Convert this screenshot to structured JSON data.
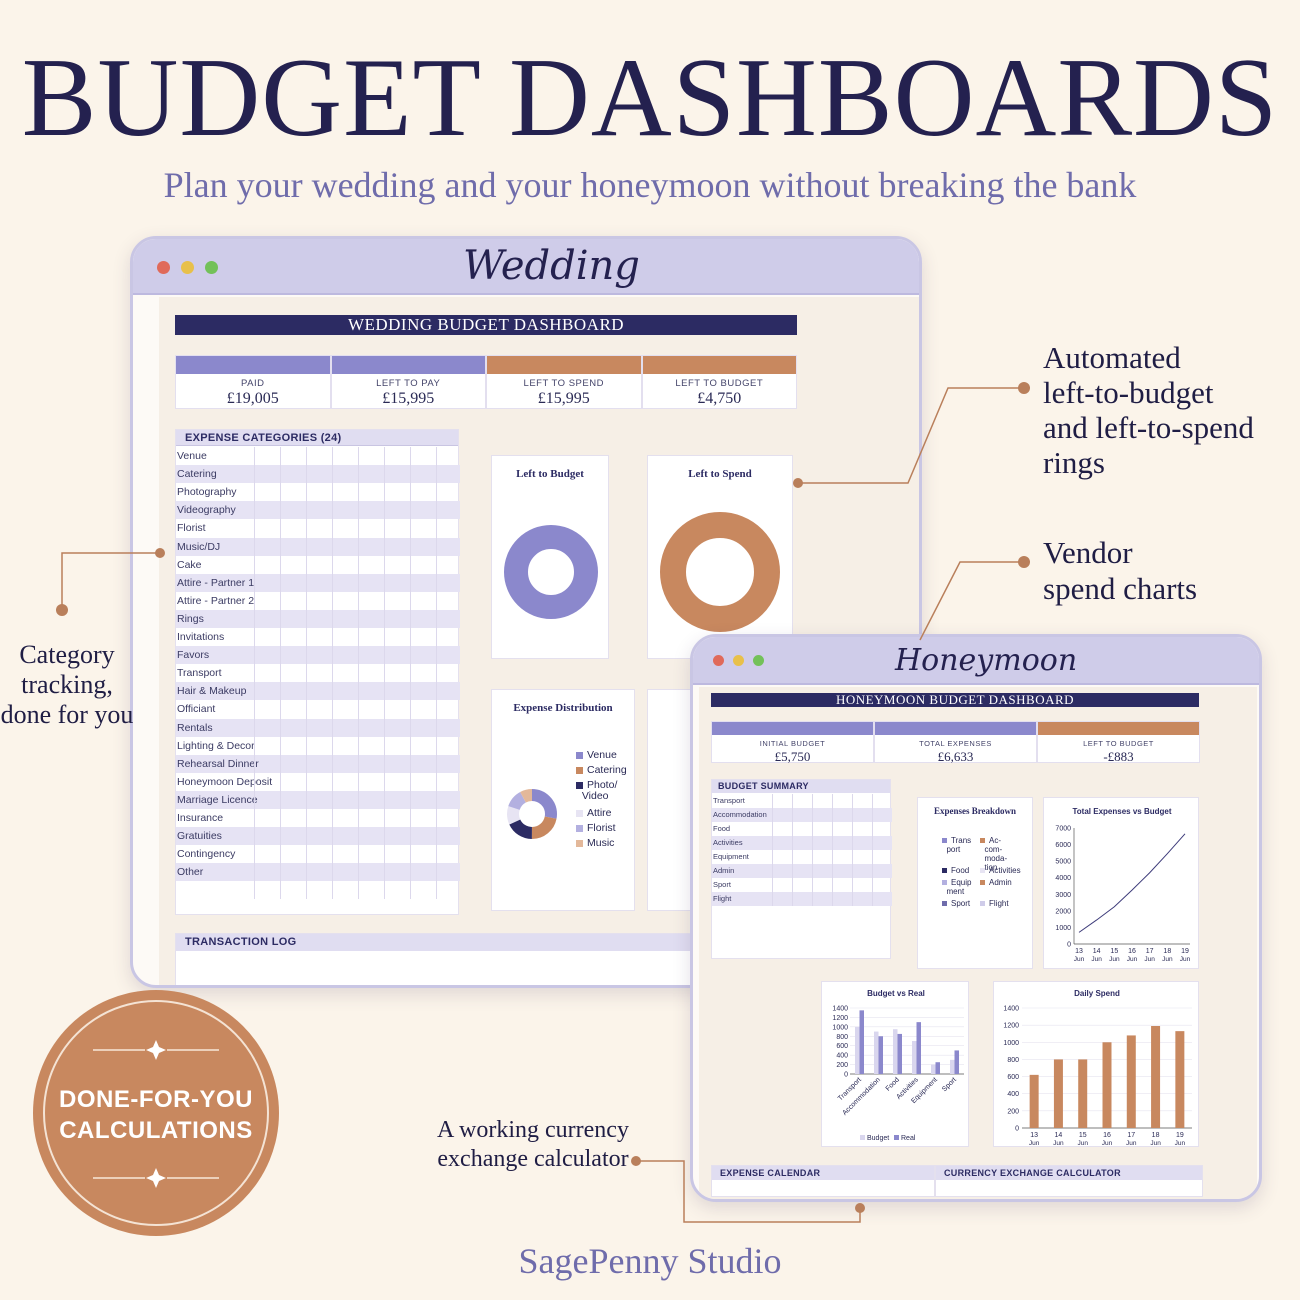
{
  "page": {
    "title": "BUDGET DASHBOARDS",
    "subtitle": "Plan your wedding and your honeymoon without breaking the bank",
    "studio": "SagePenny  Studio",
    "badge_line1": "DONE-FOR-YOU",
    "badge_line2": "CALCULATIONS"
  },
  "annotations": {
    "rings": [
      "Automated",
      "left-to-budget",
      "and left-to-spend",
      "rings"
    ],
    "vendor": [
      "Vendor",
      "spend charts"
    ],
    "category": [
      "Category",
      "tracking,",
      "done for you"
    ],
    "currency": [
      "A working currency",
      "exchange calculator"
    ]
  },
  "colors": {
    "navy": "#2c2b63",
    "lavender": "#8b88cc",
    "copper": "#c8885f",
    "light_lavender": "#cfcce9"
  },
  "wedding": {
    "window_title": "Wedding",
    "banner": "WEDDING BUDGET DASHBOARD",
    "stats": [
      {
        "label": "PAID",
        "value": "£19,005",
        "color": "lavender"
      },
      {
        "label": "LEFT TO PAY",
        "value": "£15,995",
        "color": "lavender"
      },
      {
        "label": "LEFT TO SPEND",
        "value": "£15,995",
        "color": "copper"
      },
      {
        "label": "LEFT TO BUDGET",
        "value": "£4,750",
        "color": "copper"
      }
    ],
    "categories_header": "EXPENSE CATEGORIES (24)",
    "categories": [
      "Venue",
      "Catering",
      "Photography",
      "Videography",
      "Florist",
      "Music/DJ",
      "Cake",
      "Attire - Partner 1",
      "Attire - Partner 2",
      "Rings",
      "Invitations",
      "Favors",
      "Transport",
      "Hair & Makeup",
      "Officiant",
      "Rentals",
      "Lighting & Decor",
      "Rehearsal Dinner",
      "Honeymoon Deposit",
      "Marriage Licence",
      "Insurance",
      "Gratuities",
      "Contingency",
      "Other"
    ],
    "left_to_budget_title": "Left to Budget",
    "left_to_spend_title": "Left to Spend",
    "expense_distribution_title": "Expense Distribution",
    "distribution_legend": [
      {
        "label": "Venue",
        "color": "#8b88cc"
      },
      {
        "label": "Catering",
        "color": "#c8885f"
      },
      {
        "label": "Photo/\nVideo",
        "color": "#2c2b63"
      },
      {
        "label": "Attire",
        "color": "#e7e4f3"
      },
      {
        "label": "Florist",
        "color": "#b3b0e0"
      },
      {
        "label": "Music",
        "color": "#e3b89a"
      }
    ],
    "transaction_log_header": "TRANSACTION LOG"
  },
  "honeymoon": {
    "window_title": "Honeymoon",
    "banner": "HONEYMOON BUDGET DASHBOARD",
    "stats": [
      {
        "label": "INITIAL BUDGET",
        "value": "£5,750",
        "color": "lavender"
      },
      {
        "label": "TOTAL EXPENSES",
        "value": "£6,633",
        "color": "lavender"
      },
      {
        "label": "LEFT TO BUDGET",
        "value": "-£883",
        "color": "copper"
      }
    ],
    "summary_header": "BUDGET SUMMARY",
    "summary_rows": [
      "Transport",
      "Accommodation",
      "Food",
      "Activities",
      "Equipment",
      "Admin",
      "Sport",
      "Flight"
    ],
    "expenses_breakdown_title": "Expenses Breakdown",
    "breakdown_legend": [
      {
        "label": "Trans\nport",
        "color": "#8b88cc"
      },
      {
        "label": "Ac-\ncom-\nmoda-\ntion",
        "color": "#c8885f"
      },
      {
        "label": "Food",
        "color": "#2c2b63"
      },
      {
        "label": "Activities",
        "color": "#e7e4f3"
      },
      {
        "label": "Equip\nment",
        "color": "#b3b0e0"
      },
      {
        "label": "Admin",
        "color": "#c8885f"
      },
      {
        "label": "Sport",
        "color": "#6f6cab"
      },
      {
        "label": "Flight",
        "color": "#cfcce9"
      }
    ],
    "expense_calendar_header": "EXPENSE CALENDAR",
    "currency_header": "CURRENCY EXCHANGE CALCULATOR"
  },
  "chart_data": [
    {
      "type": "pie",
      "title": "Left to Budget",
      "slices": [
        {
          "label": "Left to Budget",
          "value": 100,
          "color": "#8b88cc"
        }
      ]
    },
    {
      "type": "pie",
      "title": "Left to Spend",
      "slices": [
        {
          "label": "Left to Spend",
          "value": 100,
          "color": "#c8885f"
        }
      ]
    },
    {
      "type": "pie",
      "title": "Expense Distribution",
      "slices": [
        {
          "label": "Venue",
          "value": 28,
          "color": "#8b88cc"
        },
        {
          "label": "Catering",
          "value": 22,
          "color": "#c8885f"
        },
        {
          "label": "Photo/Video",
          "value": 18,
          "color": "#2c2b63"
        },
        {
          "label": "Attire",
          "value": 12,
          "color": "#e7e4f3"
        },
        {
          "label": "Florist",
          "value": 12,
          "color": "#b3b0e0"
        },
        {
          "label": "Music",
          "value": 8,
          "color": "#e3b89a"
        }
      ]
    },
    {
      "type": "line",
      "title": "Total Expenses vs Budget",
      "x": [
        "13 Jun",
        "14 Jun",
        "15 Jun",
        "16 Jun",
        "17 Jun",
        "18 Jun",
        "19 Jun"
      ],
      "series": [
        {
          "values": [
            700,
            1450,
            2250,
            3250,
            4300,
            5450,
            6650
          ]
        }
      ],
      "ylim": [
        0,
        7000
      ],
      "yticks": [
        0,
        1000,
        2000,
        3000,
        4000,
        5000,
        6000,
        7000
      ]
    },
    {
      "type": "bar",
      "title": "Budget vs Real",
      "categories": [
        "Transport",
        "Accommodation",
        "Food",
        "Activities",
        "Equipment",
        "Sport"
      ],
      "series": [
        {
          "name": "Budget",
          "values": [
            1000,
            900,
            950,
            700,
            200,
            300
          ]
        },
        {
          "name": "Real",
          "values": [
            1350,
            800,
            850,
            1100,
            250,
            500
          ]
        }
      ],
      "ylim": [
        0,
        1400
      ],
      "yticks": [
        0,
        200,
        400,
        600,
        800,
        1000,
        1200,
        1400
      ]
    },
    {
      "type": "bar",
      "title": "Daily Spend",
      "categories": [
        "13 Jun",
        "14 Jun",
        "15 Jun",
        "16 Jun",
        "17 Jun",
        "18 Jun",
        "19 Jun"
      ],
      "values": [
        620,
        800,
        800,
        1000,
        1080,
        1190,
        1130
      ],
      "ylim": [
        0,
        1400
      ],
      "yticks": [
        0,
        200,
        400,
        600,
        800,
        1000,
        1200,
        1400
      ]
    }
  ]
}
